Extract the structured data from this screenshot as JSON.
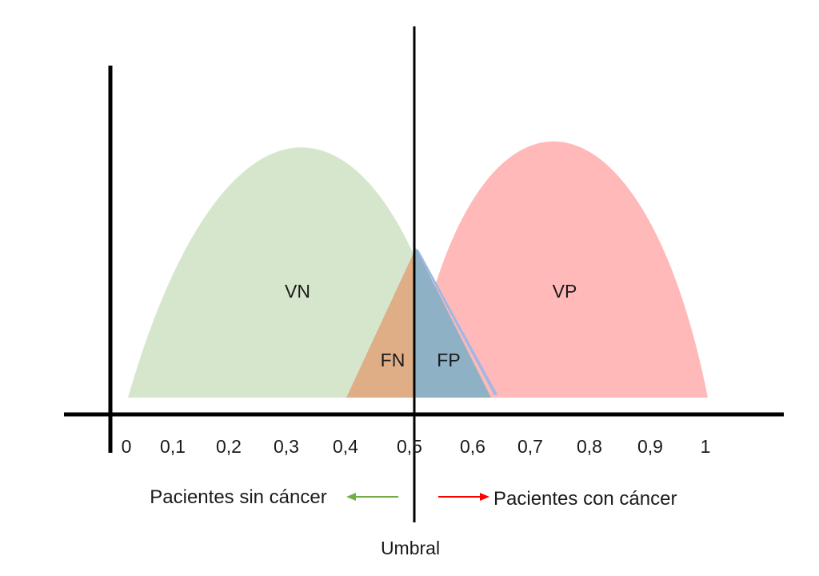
{
  "axis": {
    "ticks": [
      "0",
      "0,1",
      "0,2",
      "0,3",
      "0,4",
      "0,5",
      "0,6",
      "0,7",
      "0,8",
      "0,9",
      "1"
    ]
  },
  "regions": {
    "true_negative": "VN",
    "false_negative": "FN",
    "false_positive": "FP",
    "true_positive": "VP"
  },
  "legend": {
    "without_cancer": "Pacientes sin cáncer",
    "with_cancer": "Pacientes con cáncer"
  },
  "threshold": {
    "label": "Umbral",
    "value": 0.5
  },
  "colors": {
    "negative_fill": "#d6e6cc",
    "positive_fill": "#ffb9b9",
    "false_negative_fill": "#dfae86",
    "false_positive_fill": "#8fb1c6",
    "false_positive_edge": "#a3b7e4",
    "arrow_green": "#70ad47",
    "arrow_red": "#ff0000",
    "axis": "#000000"
  }
}
